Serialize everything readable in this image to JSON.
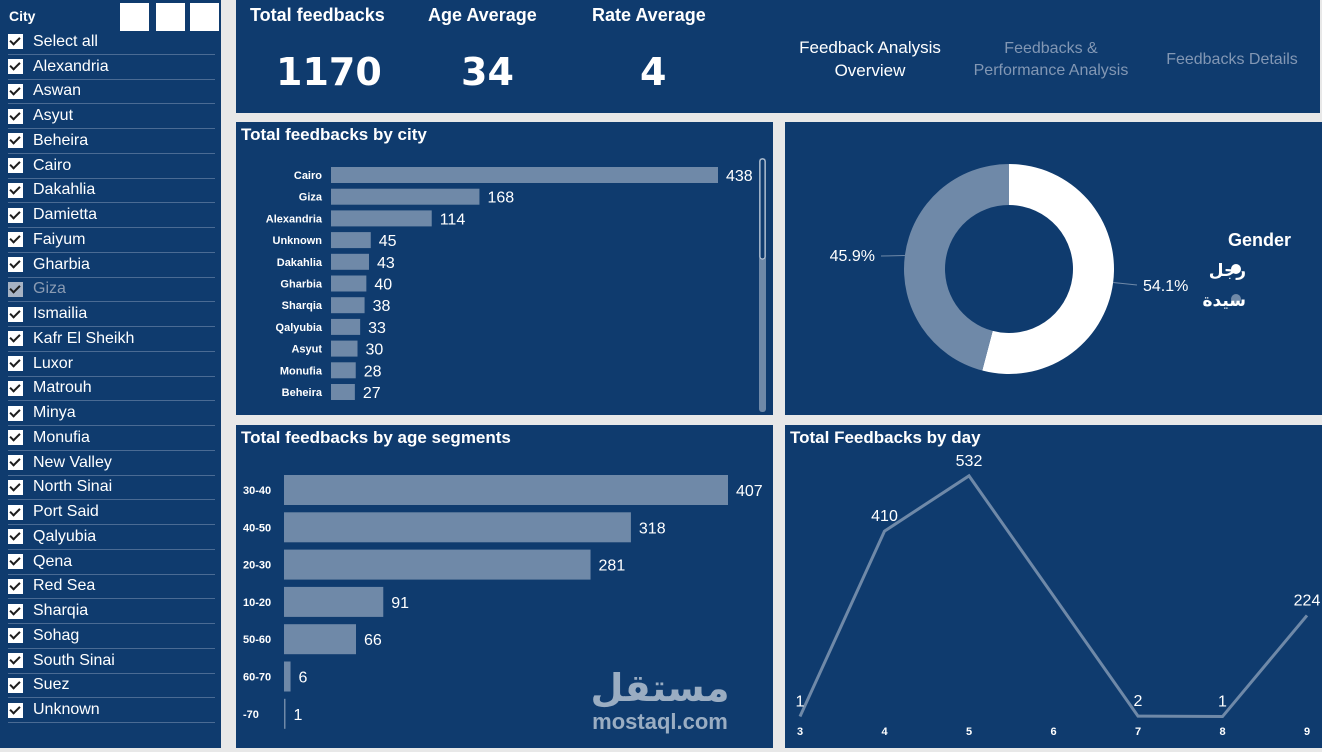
{
  "slicer": {
    "title": "City",
    "items": [
      {
        "label": "Select all",
        "dim": false
      },
      {
        "label": "Alexandria",
        "dim": false
      },
      {
        "label": "Aswan",
        "dim": false
      },
      {
        "label": "Asyut",
        "dim": false
      },
      {
        "label": "Beheira",
        "dim": false
      },
      {
        "label": "Cairo",
        "dim": false
      },
      {
        "label": "Dakahlia",
        "dim": false
      },
      {
        "label": "Damietta",
        "dim": false
      },
      {
        "label": "Faiyum",
        "dim": false
      },
      {
        "label": "Gharbia",
        "dim": false
      },
      {
        "label": "Giza",
        "dim": true
      },
      {
        "label": "Ismailia",
        "dim": false
      },
      {
        "label": "Kafr El Sheikh",
        "dim": false
      },
      {
        "label": "Luxor",
        "dim": false
      },
      {
        "label": "Matrouh",
        "dim": false
      },
      {
        "label": "Minya",
        "dim": false
      },
      {
        "label": "Monufia",
        "dim": false
      },
      {
        "label": "New Valley",
        "dim": false
      },
      {
        "label": "North Sinai",
        "dim": false
      },
      {
        "label": "Port Said",
        "dim": false
      },
      {
        "label": "Qalyubia",
        "dim": false
      },
      {
        "label": "Qena",
        "dim": false
      },
      {
        "label": "Red Sea",
        "dim": false
      },
      {
        "label": "Sharqia",
        "dim": false
      },
      {
        "label": "Sohag",
        "dim": false
      },
      {
        "label": "South Sinai",
        "dim": false
      },
      {
        "label": "Suez",
        "dim": false
      },
      {
        "label": "Unknown",
        "dim": false
      }
    ]
  },
  "kpis": {
    "total_label": "Total feedbacks",
    "total_value": "1170",
    "age_label": "Age Average",
    "age_value": "34",
    "rate_label": "Rate Average",
    "rate_value": "4"
  },
  "nav": {
    "overview_line1": "Feedback Analysis",
    "overview_line2": "Overview",
    "performance_line1": "Feedbacks &",
    "performance_line2": "Performance Analysis",
    "details": "Feedbacks Details"
  },
  "watermark": {
    "arabic": "مستقل",
    "latin": "mostaql.com"
  },
  "colors": {
    "panel": "#0f3b6e",
    "bar": "#6f89a8",
    "white": "#ffffff",
    "accent_slice": "#6f89a8"
  },
  "chart_data": [
    {
      "type": "bar",
      "orientation": "horizontal",
      "title": "Total feedbacks by city",
      "categories": [
        "Cairo",
        "Giza",
        "Alexandria",
        "Unknown",
        "Dakahlia",
        "Gharbia",
        "Sharqia",
        "Qalyubia",
        "Asyut",
        "Monufia",
        "Beheira"
      ],
      "values": [
        438,
        168,
        114,
        45,
        43,
        40,
        38,
        33,
        30,
        28,
        27
      ]
    },
    {
      "type": "pie",
      "subtype": "donut",
      "legend_title": "Gender",
      "legend_position": "right",
      "labels": [
        "رجل",
        "سيدة"
      ],
      "values": [
        54.1,
        45.9
      ],
      "value_labels": [
        "54.1%",
        "45.9%"
      ],
      "colors": [
        "#ffffff",
        "#6f89a8"
      ]
    },
    {
      "type": "bar",
      "orientation": "horizontal",
      "title": "Total feedbacks by age segments",
      "categories": [
        "30-40",
        "40-50",
        "20-30",
        "10-20",
        "50-60",
        "60-70",
        "-70"
      ],
      "values": [
        407,
        318,
        281,
        91,
        66,
        6,
        1
      ]
    },
    {
      "type": "line",
      "title": "Total Feedbacks by day",
      "x": [
        3,
        4,
        5,
        7,
        8,
        9
      ],
      "x_ticks": [
        "3",
        "4",
        "5",
        "6",
        "7",
        "8",
        "9"
      ],
      "y": [
        1,
        410,
        532,
        2,
        1,
        224
      ]
    }
  ]
}
